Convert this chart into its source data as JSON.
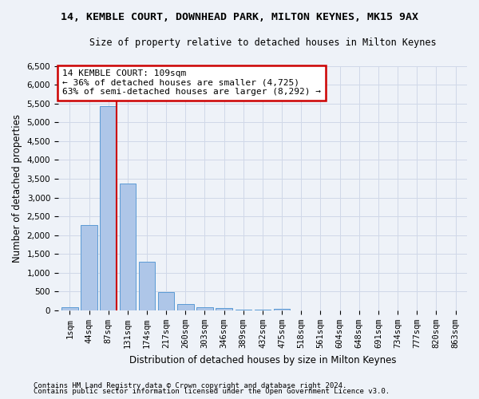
{
  "title": "14, KEMBLE COURT, DOWNHEAD PARK, MILTON KEYNES, MK15 9AX",
  "subtitle": "Size of property relative to detached houses in Milton Keynes",
  "xlabel": "Distribution of detached houses by size in Milton Keynes",
  "ylabel": "Number of detached properties",
  "footer_line1": "Contains HM Land Registry data © Crown copyright and database right 2024.",
  "footer_line2": "Contains public sector information licensed under the Open Government Licence v3.0.",
  "bar_labels": [
    "1sqm",
    "44sqm",
    "87sqm",
    "131sqm",
    "174sqm",
    "217sqm",
    "260sqm",
    "303sqm",
    "346sqm",
    "389sqm",
    "432sqm",
    "475sqm",
    "518sqm",
    "561sqm",
    "604sqm",
    "648sqm",
    "691sqm",
    "734sqm",
    "777sqm",
    "820sqm",
    "863sqm"
  ],
  "bar_values": [
    75,
    2270,
    5430,
    3380,
    1300,
    480,
    165,
    80,
    60,
    30,
    20,
    50,
    0,
    0,
    0,
    0,
    0,
    0,
    0,
    0,
    0
  ],
  "bar_color": "#aec6e8",
  "bar_edge_color": "#5b9bd5",
  "grid_color": "#d0d8e8",
  "background_color": "#eef2f8",
  "annotation_text": "14 KEMBLE COURT: 109sqm\n← 36% of detached houses are smaller (4,725)\n63% of semi-detached houses are larger (8,292) →",
  "annotation_box_color": "#ffffff",
  "annotation_box_edge": "#cc0000",
  "vline_color": "#cc0000",
  "ylim": [
    0,
    6500
  ],
  "yticks": [
    0,
    500,
    1000,
    1500,
    2000,
    2500,
    3000,
    3500,
    4000,
    4500,
    5000,
    5500,
    6000,
    6500
  ],
  "title_fontsize": 9.5,
  "subtitle_fontsize": 8.5,
  "ylabel_fontsize": 8.5,
  "xlabel_fontsize": 8.5,
  "tick_fontsize": 7.5,
  "footer_fontsize": 6.5,
  "annotation_fontsize": 8.0
}
